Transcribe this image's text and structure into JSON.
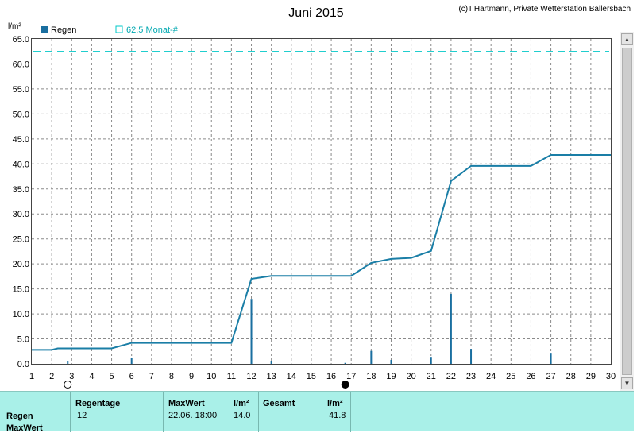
{
  "chart_data": {
    "type": "bar",
    "title": "Juni 2015",
    "credit": "(c)T.Hartmann, Private Wetterstation Ballersbach",
    "ylabel": "l/m²",
    "ylim": [
      0,
      65
    ],
    "yticks": [
      "0.0",
      "5.0",
      "10.0",
      "15.0",
      "20.0",
      "25.0",
      "30.0",
      "35.0",
      "40.0",
      "45.0",
      "50.0",
      "55.0",
      "60.0",
      "65.0"
    ],
    "xlim": [
      1,
      30
    ],
    "xticks": [
      "1",
      "2",
      "3",
      "4",
      "5",
      "6",
      "7",
      "8",
      "9",
      "10",
      "11",
      "12",
      "13",
      "14",
      "15",
      "16",
      "17",
      "18",
      "19",
      "20",
      "21",
      "22",
      "23",
      "24",
      "25",
      "26",
      "27",
      "28",
      "29",
      "30"
    ],
    "grid": true,
    "legend": {
      "position": "top-left",
      "entries": [
        "Regen",
        "62.5 Monat-#"
      ]
    },
    "reference_line": {
      "label": "62.5 Monat-#",
      "value": 62.5,
      "color": "#00c8c8"
    },
    "series": [
      {
        "name": "Regen",
        "kind": "bars",
        "color": "#1a6fa0",
        "points": [
          {
            "x": 2.8,
            "y": 0.5
          },
          {
            "x": 6.0,
            "y": 1.2
          },
          {
            "x": 12.0,
            "y": 13.0
          },
          {
            "x": 13.0,
            "y": 0.6
          },
          {
            "x": 16.7,
            "y": 0.2
          },
          {
            "x": 18.0,
            "y": 2.6
          },
          {
            "x": 19.0,
            "y": 0.8
          },
          {
            "x": 21.0,
            "y": 1.4
          },
          {
            "x": 22.0,
            "y": 14.0
          },
          {
            "x": 23.0,
            "y": 3.0
          },
          {
            "x": 27.0,
            "y": 2.2
          }
        ]
      },
      {
        "kind": "line",
        "color": "#1a7ea6",
        "points": [
          {
            "x": 1.0,
            "y": 2.8
          },
          {
            "x": 2.0,
            "y": 2.8
          },
          {
            "x": 2.3,
            "y": 3.1
          },
          {
            "x": 5.0,
            "y": 3.1
          },
          {
            "x": 6.0,
            "y": 4.2
          },
          {
            "x": 11.0,
            "y": 4.2
          },
          {
            "x": 12.0,
            "y": 17.0
          },
          {
            "x": 13.0,
            "y": 17.6
          },
          {
            "x": 17.0,
            "y": 17.6
          },
          {
            "x": 18.0,
            "y": 20.2
          },
          {
            "x": 19.0,
            "y": 21.0
          },
          {
            "x": 20.0,
            "y": 21.2
          },
          {
            "x": 21.0,
            "y": 22.6
          },
          {
            "x": 22.0,
            "y": 36.6
          },
          {
            "x": 23.0,
            "y": 39.6
          },
          {
            "x": 26.0,
            "y": 39.6
          },
          {
            "x": 27.0,
            "y": 41.8
          },
          {
            "x": 30.0,
            "y": 41.8
          }
        ]
      }
    ],
    "moon_phases": [
      {
        "x": 2.8,
        "phase": "full"
      },
      {
        "x": 16.7,
        "phase": "new"
      }
    ]
  },
  "summary": {
    "row_regen": "Regen",
    "row_maxwert": "MaxWert",
    "regentage_label": "Regentage",
    "regentage_value": "12",
    "maxwert_label": "MaxWert",
    "maxwert_date": "22.06.  18:00",
    "maxwert_unit": "l/m²",
    "maxwert_value": "14.0",
    "gesamt_label": "Gesamt",
    "gesamt_unit": "l/m²",
    "gesamt_value": "41.8"
  },
  "colors": {
    "accent": "#1a7ea6",
    "reference": "#00c8c8",
    "summary_bg": "#a9f0e8"
  }
}
